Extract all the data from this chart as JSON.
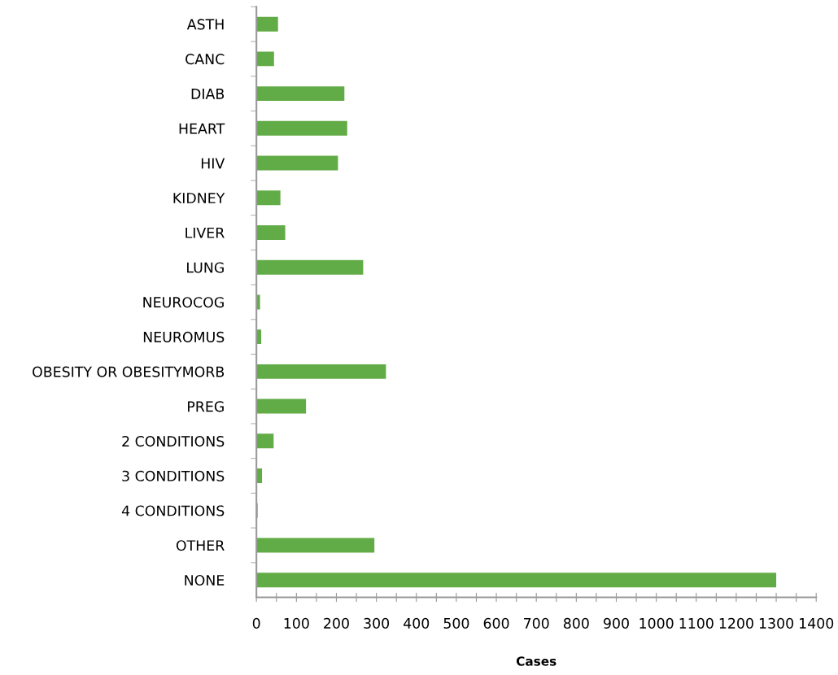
{
  "chart_data": {
    "type": "bar",
    "orientation": "horizontal",
    "xlabel": "Cases",
    "categories": [
      "ASTH",
      "CANC",
      "DIAB",
      "HEART",
      "HIV",
      "KIDNEY",
      "LIVER",
      "LUNG",
      "NEUROCOG",
      "NEUROMUS",
      "OBESITY OR OBESITYMORB",
      "PREG",
      "2 CONDITIONS",
      "3 CONDITIONS",
      "4 CONDITIONS",
      "OTHER",
      "NONE"
    ],
    "values": [
      54,
      44,
      220,
      227,
      204,
      60,
      72,
      267,
      9,
      12,
      324,
      124,
      43,
      14,
      3,
      295,
      1300
    ],
    "color": "#62ac47",
    "xlim": [
      0,
      1400
    ],
    "xticks": [
      0,
      {
        "value": 50,
        "label": null
      },
      100,
      {
        "value": 150,
        "label": null
      },
      200,
      {
        "value": 250,
        "label": null
      },
      300,
      {
        "value": 350,
        "label": null
      },
      400,
      {
        "value": 450,
        "label": null
      },
      500,
      {
        "value": 550,
        "label": null
      },
      600,
      {
        "value": 650,
        "label": null
      },
      700,
      {
        "value": 750,
        "label": null
      },
      800,
      {
        "value": 850,
        "label": null
      },
      900,
      {
        "value": 950,
        "label": null
      },
      1000,
      {
        "value": 1050,
        "label": null
      },
      1100,
      {
        "value": 1150,
        "label": null
      },
      1200,
      {
        "value": 1250,
        "label": null
      },
      1300,
      {
        "value": 1350,
        "label": null
      },
      1400
    ],
    "grid": false,
    "legend": false
  }
}
